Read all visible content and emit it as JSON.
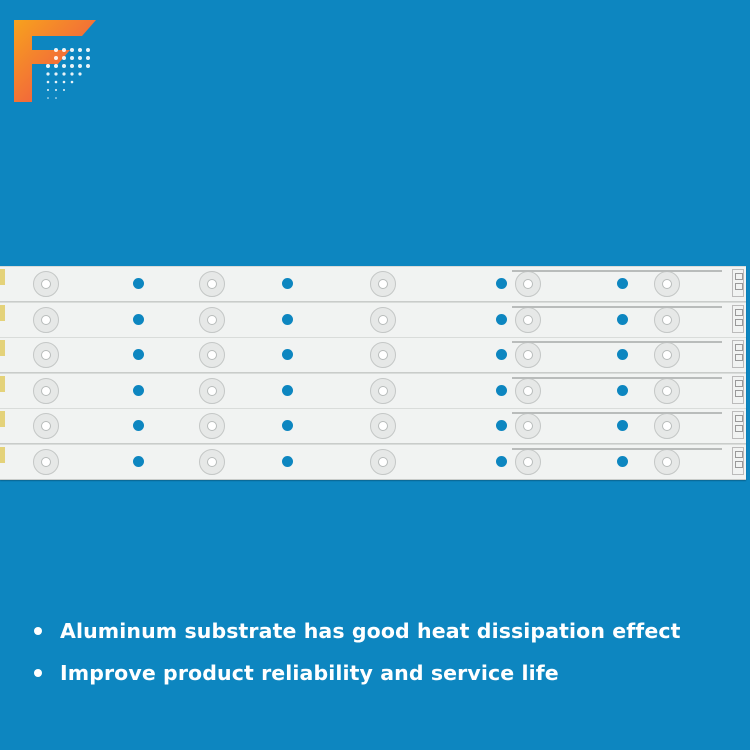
{
  "logo": {
    "name": "brand-logo",
    "letter": "F"
  },
  "product": {
    "strip_count": 6,
    "leds_per_strip": 5
  },
  "bullets": [
    {
      "text": "Aluminum substrate has good heat dissipation effect"
    },
    {
      "text": "Improve product reliability and service life"
    }
  ],
  "colors": {
    "background": "#0d86c0",
    "strip": "#f1f3f2",
    "text": "#ffffff",
    "logo_orange": "#f7941d",
    "logo_pink": "#e8457a"
  }
}
